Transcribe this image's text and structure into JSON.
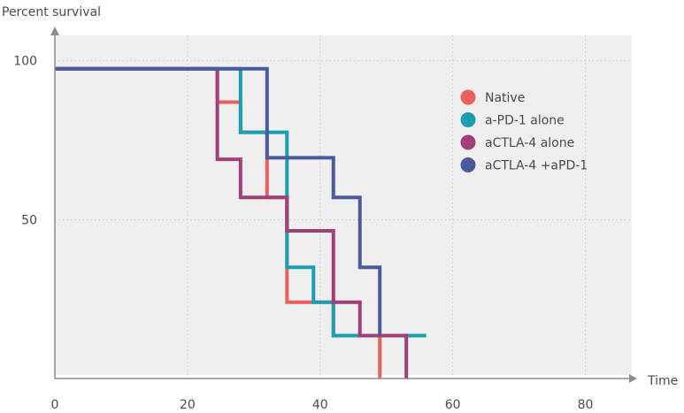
{
  "chart_data": {
    "type": "line",
    "step": true,
    "title": "",
    "xlabel": "Time",
    "ylabel": "Percent survival",
    "xlim": [
      0,
      87
    ],
    "ylim": [
      0,
      108
    ],
    "x_ticks": [
      0,
      20,
      40,
      60,
      80
    ],
    "y_ticks": [
      50,
      100
    ],
    "grid": true,
    "legend_position": "right",
    "series": [
      {
        "name": "Native",
        "color": "#e8615a",
        "x": [
          0,
          24.5,
          28,
          32,
          35,
          42,
          49
        ],
        "y": [
          97.5,
          87,
          77.5,
          57,
          24,
          13.5,
          0
        ]
      },
      {
        "name": "a-PD-1 alone",
        "color": "#1a9fb1",
        "x": [
          0,
          28,
          35,
          39,
          42,
          49,
          56
        ],
        "y": [
          97.5,
          77.5,
          35,
          24,
          13.5,
          13.5,
          13.5
        ]
      },
      {
        "name": "aCTLA-4 alone",
        "color": "#a33f78",
        "x": [
          0,
          24.5,
          28,
          32,
          35,
          42,
          46,
          53
        ],
        "y": [
          97.5,
          69,
          57,
          57,
          46.5,
          24,
          13.5,
          0
        ]
      },
      {
        "name": "aCTLA-4 +aPD-1",
        "color": "#4a5b9c",
        "x": [
          0,
          32,
          42,
          46,
          49,
          49
        ],
        "y": [
          97.5,
          69.5,
          57,
          35,
          13.5,
          13.5
        ]
      }
    ]
  }
}
